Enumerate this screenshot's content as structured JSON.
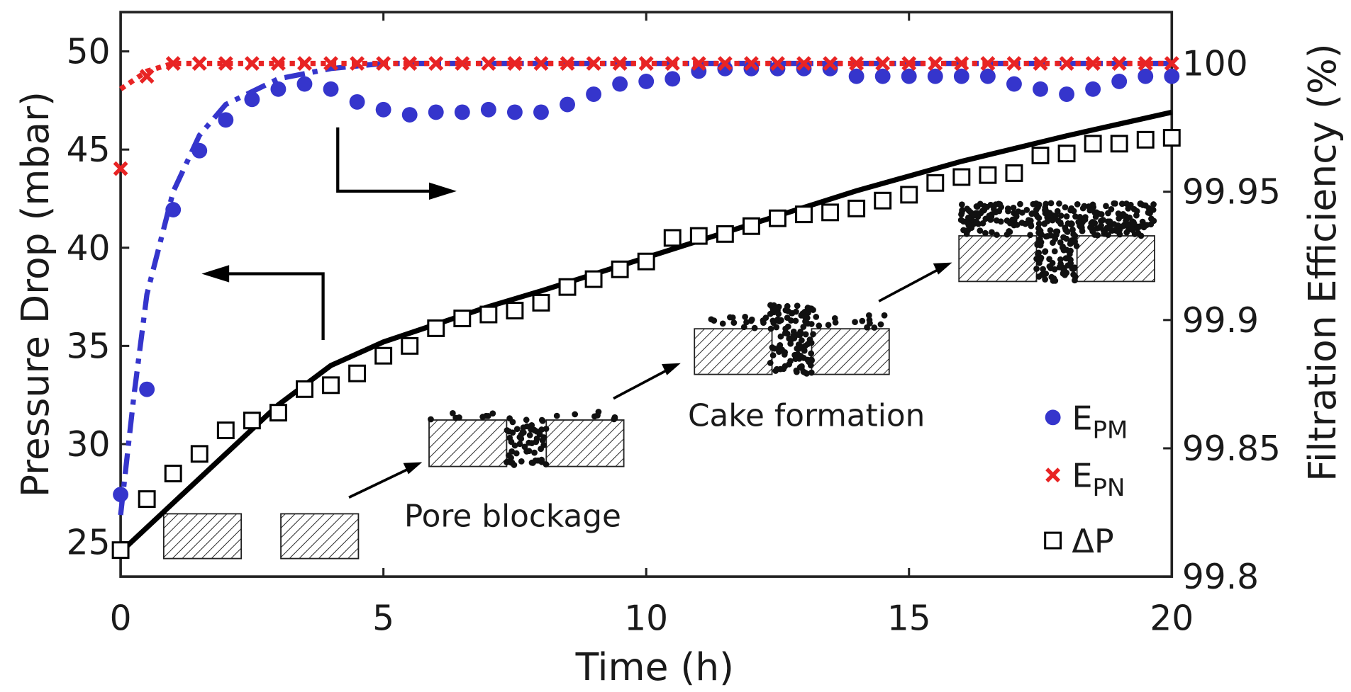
{
  "chart_data": {
    "type": "scatter",
    "xlabel": "Time (h)",
    "ylabel": "Pressure Drop (mbar)",
    "y2label": "Filtration Efficiency (%)",
    "xlim": [
      0,
      20
    ],
    "xticks": [
      0,
      5,
      10,
      15,
      20
    ],
    "ylim": [
      23.25,
      52
    ],
    "yticks": [
      25,
      30,
      35,
      40,
      45,
      50
    ],
    "y2lim": [
      99.8,
      100.02
    ],
    "y2ticks": [
      99.8,
      99.85,
      99.9,
      99.95,
      100
    ],
    "x": [
      0,
      0.5,
      1,
      1.5,
      2,
      2.5,
      3,
      3.5,
      4,
      4.5,
      5,
      5.5,
      6,
      6.5,
      7,
      7.5,
      8,
      8.5,
      9,
      9.5,
      10,
      10.5,
      11,
      11.5,
      12,
      12.5,
      13,
      13.5,
      14,
      14.5,
      15,
      15.5,
      16,
      16.5,
      17,
      17.5,
      18,
      18.5,
      19,
      19.5,
      20
    ],
    "series": [
      {
        "name": "EPM",
        "marker": "circle",
        "color": "#3535cc",
        "axis": "y2",
        "values": [
          99.832,
          99.873,
          99.943,
          99.966,
          99.978,
          99.986,
          99.99,
          99.992,
          99.99,
          99.985,
          99.982,
          99.98,
          99.981,
          99.981,
          99.982,
          99.981,
          99.981,
          99.984,
          99.988,
          99.992,
          99.993,
          99.994,
          99.997,
          99.998,
          99.998,
          99.998,
          99.998,
          99.998,
          99.995,
          99.995,
          99.995,
          99.995,
          99.995,
          99.995,
          99.992,
          99.99,
          99.988,
          99.99,
          99.993,
          99.995,
          99.995
        ]
      },
      {
        "name": "EPN",
        "marker": "x",
        "color": "#e82424",
        "axis": "y2",
        "values": [
          99.959,
          99.995,
          100,
          100,
          100,
          100,
          100,
          100,
          100,
          100,
          100,
          100,
          100,
          100,
          100,
          100,
          100,
          100,
          100,
          100,
          100,
          100,
          100,
          100,
          100,
          100,
          100,
          100,
          100,
          100,
          100,
          100,
          100,
          100,
          100,
          100,
          100,
          100,
          100,
          100,
          100
        ]
      },
      {
        "name": "ΔP",
        "marker": "square",
        "color": "#000000",
        "axis": "y",
        "values": [
          24.6,
          27.2,
          28.5,
          29.5,
          30.7,
          31.2,
          31.6,
          32.8,
          33.0,
          33.6,
          34.5,
          35.0,
          35.9,
          36.4,
          36.6,
          36.8,
          37.2,
          38.0,
          38.4,
          38.9,
          39.3,
          40.5,
          40.6,
          40.7,
          41.1,
          41.5,
          41.7,
          41.8,
          42.0,
          42.4,
          42.7,
          43.3,
          43.6,
          43.7,
          43.8,
          44.7,
          44.8,
          45.3,
          45.3,
          45.5,
          45.6
        ]
      }
    ],
    "fits": [
      {
        "style": "solid",
        "color": "#000000",
        "axis": "y",
        "x": [
          0,
          1,
          2,
          3,
          4,
          5,
          6,
          7,
          8,
          10,
          12,
          14,
          16,
          18,
          20
        ],
        "values": [
          24.5,
          27,
          29.5,
          32,
          34,
          35.2,
          36.1,
          37,
          37.8,
          39.5,
          41.2,
          42.9,
          44.4,
          45.7,
          46.9
        ]
      },
      {
        "style": "dashdot",
        "color": "#3535cc",
        "axis": "y2",
        "x": [
          0,
          0.25,
          0.5,
          1,
          1.5,
          2,
          3,
          4,
          5,
          20
        ],
        "values": [
          99.824,
          99.87,
          99.91,
          99.95,
          99.972,
          99.984,
          99.994,
          99.998,
          100,
          100
        ]
      },
      {
        "style": "dotted",
        "color": "#e82424",
        "axis": "y2",
        "x": [
          0,
          0.5,
          1,
          20
        ],
        "values": [
          99.99,
          99.997,
          100,
          100
        ]
      }
    ],
    "annotations": [
      "Pore blockage",
      "Cake formation"
    ]
  }
}
